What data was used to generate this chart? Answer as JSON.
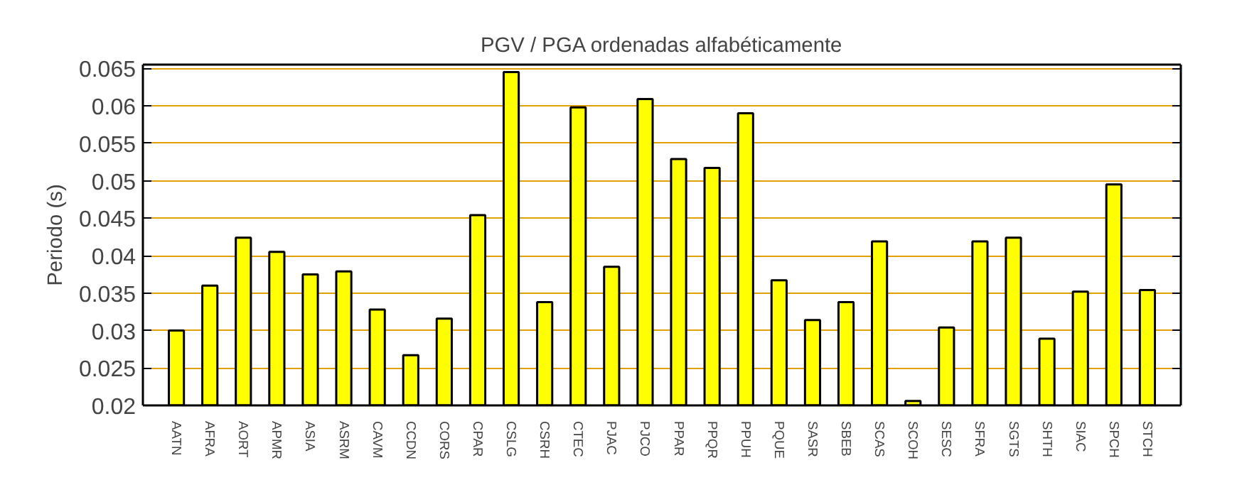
{
  "chart_data": {
    "type": "bar",
    "title": "PGV / PGA ordenadas alfabéticamente",
    "ylabel": "Periodo (s)",
    "categories": [
      "AATN",
      "AFRA",
      "AORT",
      "APMR",
      "ASIA",
      "ASRM",
      "CAVM",
      "CCDN",
      "CORS",
      "CPAR",
      "CSLG",
      "CSRH",
      "CTEC",
      "PJAC",
      "PJCO",
      "PPAR",
      "PPQR",
      "PPUH",
      "PQUE",
      "SASR",
      "SBEB",
      "SCAS",
      "SCOH",
      "SESC",
      "SFRA",
      "SGTS",
      "SHTH",
      "SIAC",
      "SPCH",
      "STCH"
    ],
    "values": [
      0.03,
      0.036,
      0.0424,
      0.0405,
      0.0375,
      0.0379,
      0.0328,
      0.0267,
      0.0316,
      0.0454,
      0.0645,
      0.0338,
      0.0598,
      0.0385,
      0.0609,
      0.0529,
      0.0517,
      0.059,
      0.0367,
      0.0314,
      0.0338,
      0.0419,
      0.0206,
      0.0304,
      0.0419,
      0.0424,
      0.0289,
      0.0352,
      0.0495,
      0.0354
    ],
    "color": "#ffff00",
    "ylim": [
      0.02,
      0.0655
    ],
    "yticks": [
      0.02,
      0.025,
      0.03,
      0.035,
      0.04,
      0.045,
      0.05,
      0.055,
      0.06,
      0.065
    ],
    "grid": "y"
  }
}
